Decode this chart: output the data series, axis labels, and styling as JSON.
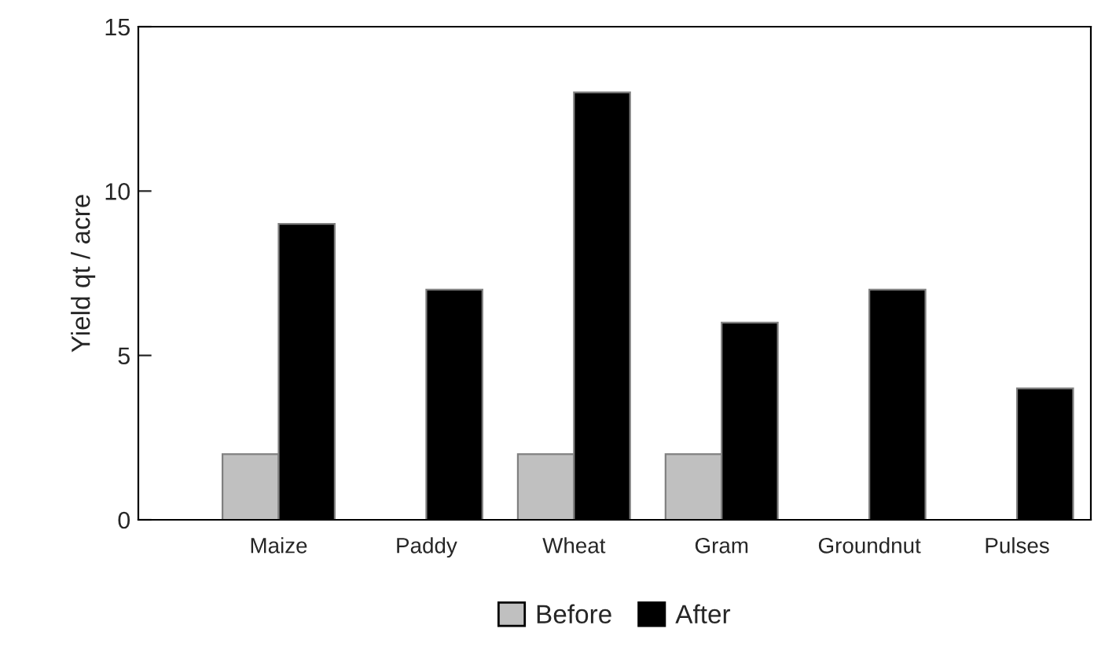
{
  "chart_data": {
    "type": "bar",
    "ylabel": "Yield qt / acre",
    "categories": [
      "Maize",
      "Paddy",
      "Wheat",
      "Gram",
      "Groundnut",
      "Pulses"
    ],
    "series": [
      {
        "name": "Before",
        "color": "#c0c0c0",
        "values": [
          2,
          null,
          2,
          2,
          null,
          null
        ]
      },
      {
        "name": "After",
        "color": "#000000",
        "values": [
          9,
          7,
          13,
          6,
          7,
          4
        ]
      }
    ],
    "ylim": [
      0,
      15
    ],
    "yticks": [
      0,
      5,
      10,
      15
    ],
    "legend": "bottom"
  }
}
